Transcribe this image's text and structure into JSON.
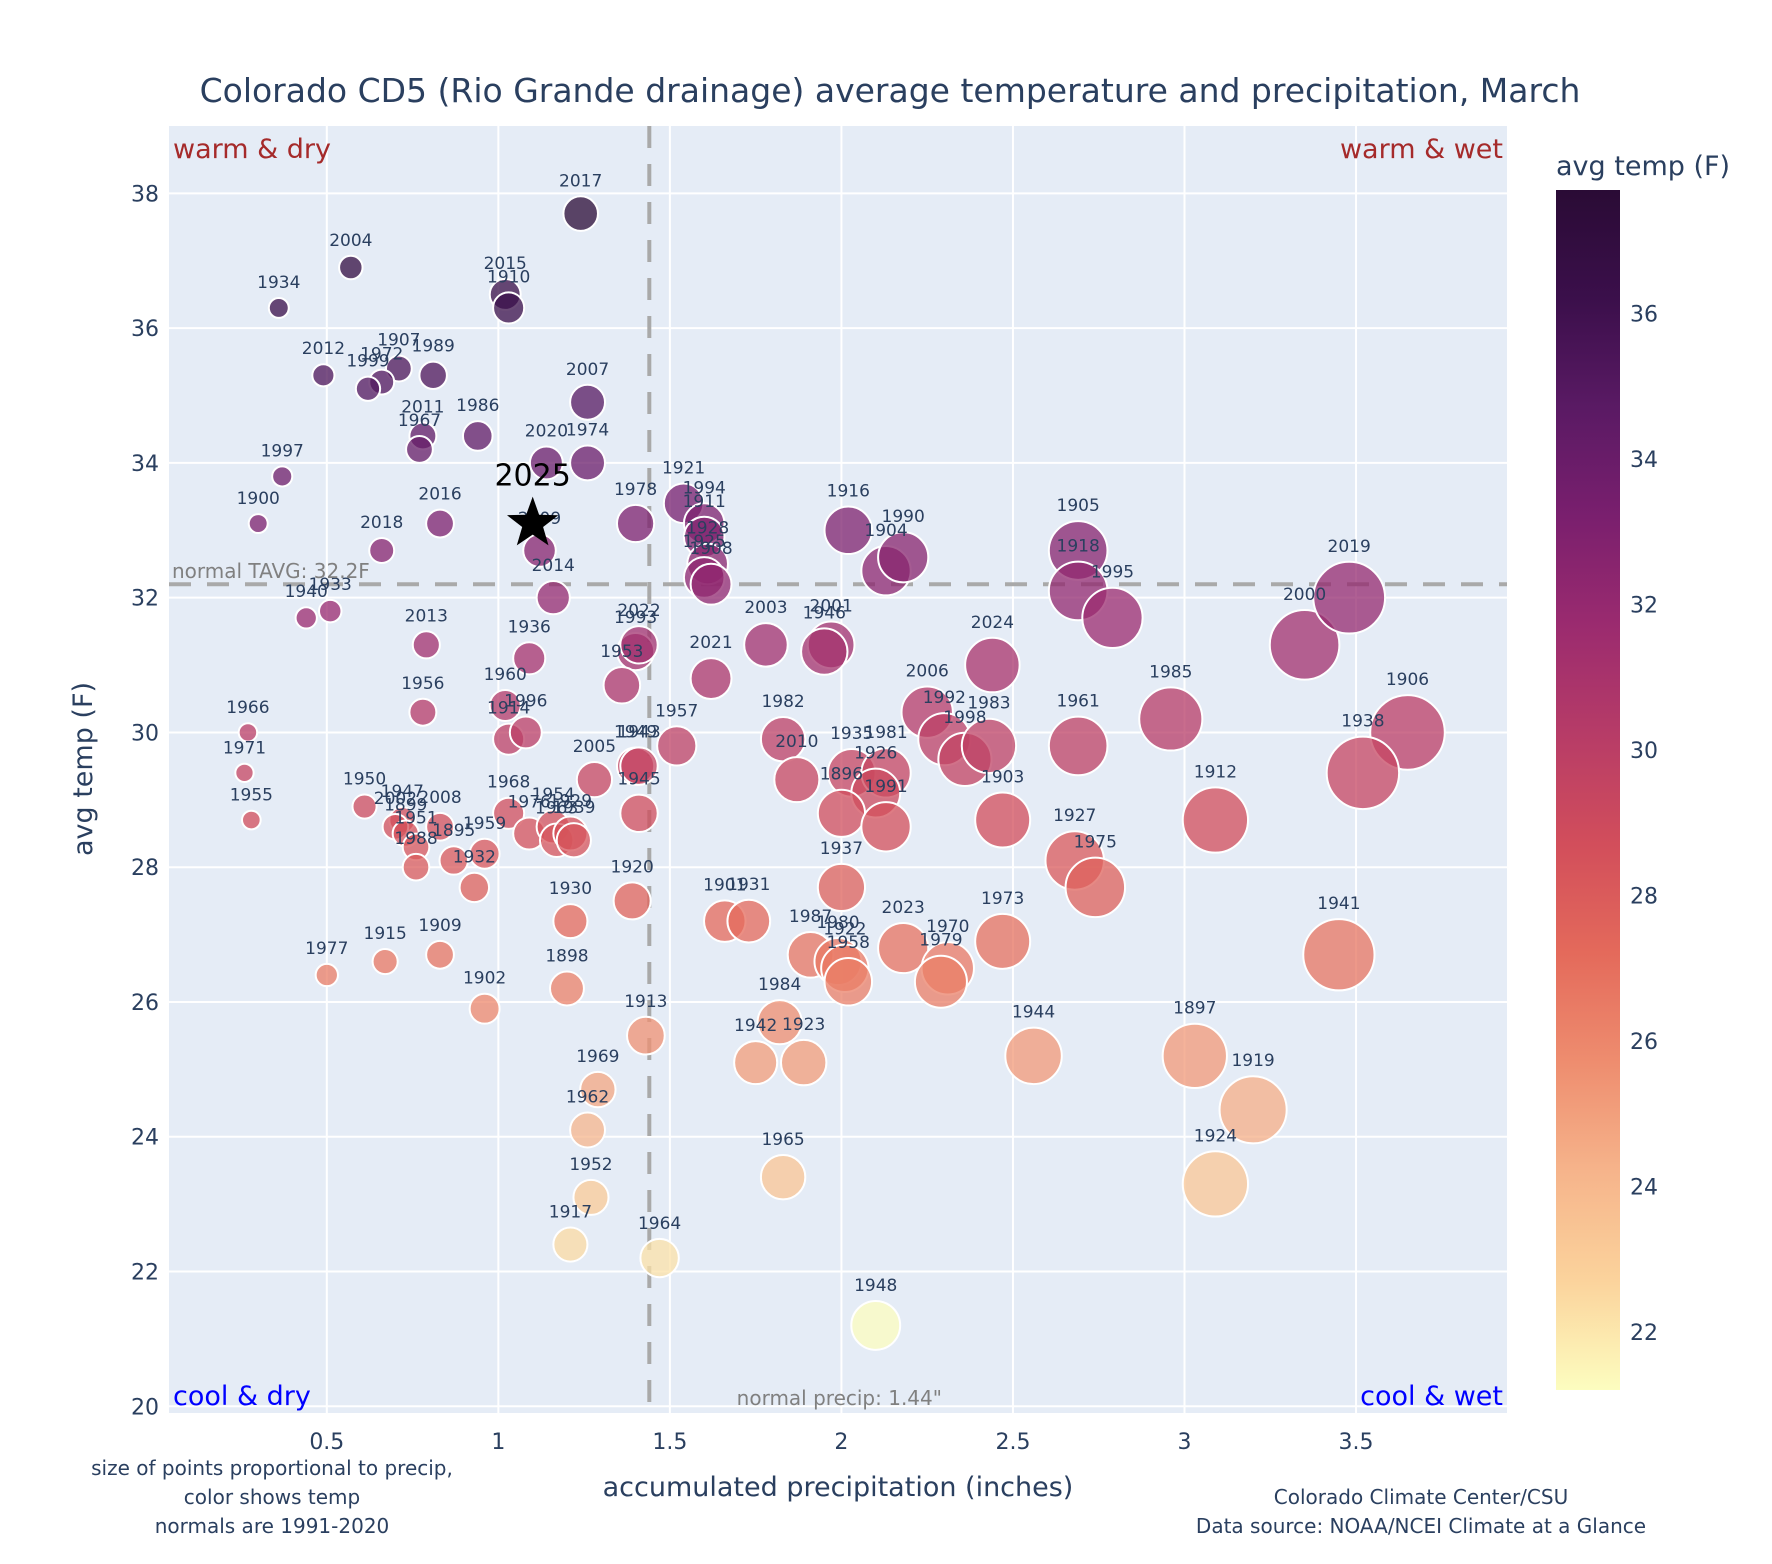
{
  "chart_data": {
    "type": "scatter",
    "title": "Colorado CD5 (Rio Grande drainage) average temperature and precipitation, March",
    "xlabel": "accumulated precipitation (inches)",
    "ylabel": "avg temp (F)",
    "xlim": [
      0.04,
      3.94
    ],
    "ylim": [
      19.9,
      39.0
    ],
    "xticks": [
      0.5,
      1,
      1.5,
      2,
      2.5,
      3,
      3.5
    ],
    "xtick_labels": [
      "0.5",
      "1",
      "1.5",
      "2",
      "2.5",
      "3",
      "3.5"
    ],
    "yticks": [
      20,
      22,
      24,
      26,
      28,
      30,
      32,
      34,
      36,
      38
    ],
    "ytick_labels": [
      "20",
      "22",
      "24",
      "26",
      "28",
      "30",
      "32",
      "34",
      "36",
      "38"
    ],
    "grid": true,
    "colorbar": {
      "title": "avg temp (F)",
      "range": [
        21.2,
        37.7
      ],
      "ticks": [
        22,
        24,
        26,
        28,
        30,
        32,
        34,
        36
      ],
      "tick_labels": [
        "22",
        "24",
        "26",
        "28",
        "30",
        "32",
        "34",
        "36"
      ],
      "colorscale": [
        "#fcfdbf",
        "#fbd39c",
        "#f6b48b",
        "#ee8d6f",
        "#e46a5b",
        "#d24e5b",
        "#b73c67",
        "#9b2b6f",
        "#7a1f6e",
        "#5a1a64",
        "#3b0f4b",
        "#2a0b35"
      ]
    },
    "reference_lines": {
      "normal_temp": 32.2,
      "normal_temp_label": "normal TAVG: 32.2F",
      "normal_precip": 1.44,
      "normal_precip_label": "normal precip: 1.44\""
    },
    "quadrant_labels": {
      "top_left": "warm & dry",
      "top_right": "warm & wet",
      "bottom_left": "cool & dry",
      "bottom_right": "cool & wet"
    },
    "quadrant_colors": {
      "warm": "#a52a2a",
      "cool": "#0000ff"
    },
    "highlight": {
      "year": "2025",
      "precip": 1.1,
      "temp": 33.1,
      "marker": "star"
    },
    "points": [
      {
        "year": "2017",
        "precip": 1.24,
        "temp": 37.7
      },
      {
        "year": "2004",
        "precip": 0.57,
        "temp": 36.9
      },
      {
        "year": "1934",
        "precip": 0.36,
        "temp": 36.3
      },
      {
        "year": "2015",
        "precip": 1.02,
        "temp": 36.5
      },
      {
        "year": "1910",
        "precip": 1.03,
        "temp": 36.3
      },
      {
        "year": "2012",
        "precip": 0.49,
        "temp": 35.3
      },
      {
        "year": "1907",
        "precip": 0.71,
        "temp": 35.4
      },
      {
        "year": "1972",
        "precip": 0.66,
        "temp": 35.2
      },
      {
        "year": "1999",
        "precip": 0.62,
        "temp": 35.1
      },
      {
        "year": "1989",
        "precip": 0.81,
        "temp": 35.3
      },
      {
        "year": "2007",
        "precip": 1.26,
        "temp": 34.9
      },
      {
        "year": "2011",
        "precip": 0.78,
        "temp": 34.4
      },
      {
        "year": "1967",
        "precip": 0.77,
        "temp": 34.2
      },
      {
        "year": "1986",
        "precip": 0.94,
        "temp": 34.4
      },
      {
        "year": "2020",
        "precip": 1.14,
        "temp": 34.0
      },
      {
        "year": "1974",
        "precip": 1.26,
        "temp": 34.0
      },
      {
        "year": "1997",
        "precip": 0.37,
        "temp": 33.8
      },
      {
        "year": "1900",
        "precip": 0.3,
        "temp": 33.1
      },
      {
        "year": "2016",
        "precip": 0.83,
        "temp": 33.1
      },
      {
        "year": "2018",
        "precip": 0.66,
        "temp": 32.7
      },
      {
        "year": "2009",
        "precip": 1.12,
        "temp": 32.7
      },
      {
        "year": "2014",
        "precip": 1.16,
        "temp": 32.0
      },
      {
        "year": "1940",
        "precip": 0.44,
        "temp": 31.7
      },
      {
        "year": "1933",
        "precip": 0.51,
        "temp": 31.8
      },
      {
        "year": "2013",
        "precip": 0.79,
        "temp": 31.3
      },
      {
        "year": "1936",
        "precip": 1.09,
        "temp": 31.1
      },
      {
        "year": "1993",
        "precip": 1.4,
        "temp": 31.2
      },
      {
        "year": "2022",
        "precip": 1.41,
        "temp": 31.3
      },
      {
        "year": "1953",
        "precip": 1.36,
        "temp": 30.7
      },
      {
        "year": "1960",
        "precip": 1.02,
        "temp": 30.4
      },
      {
        "year": "1914",
        "precip": 1.03,
        "temp": 29.9
      },
      {
        "year": "1996",
        "precip": 1.08,
        "temp": 30.0
      },
      {
        "year": "1956",
        "precip": 0.78,
        "temp": 30.3
      },
      {
        "year": "1966",
        "precip": 0.27,
        "temp": 30.0
      },
      {
        "year": "1971",
        "precip": 0.26,
        "temp": 29.4
      },
      {
        "year": "1955",
        "precip": 0.28,
        "temp": 28.7
      },
      {
        "year": "1950",
        "precip": 0.61,
        "temp": 28.9
      },
      {
        "year": "1947",
        "precip": 0.72,
        "temp": 28.7
      },
      {
        "year": "2002",
        "precip": 0.7,
        "temp": 28.6
      },
      {
        "year": "1899",
        "precip": 0.73,
        "temp": 28.5
      },
      {
        "year": "2008",
        "precip": 0.83,
        "temp": 28.6
      },
      {
        "year": "1951",
        "precip": 0.76,
        "temp": 28.3
      },
      {
        "year": "1895",
        "precip": 0.87,
        "temp": 28.1
      },
      {
        "year": "1959",
        "precip": 0.96,
        "temp": 28.2
      },
      {
        "year": "1988",
        "precip": 0.76,
        "temp": 28.0
      },
      {
        "year": "1932",
        "precip": 0.93,
        "temp": 27.7
      },
      {
        "year": "1968",
        "precip": 1.03,
        "temp": 28.8
      },
      {
        "year": "1976",
        "precip": 1.09,
        "temp": 28.5
      },
      {
        "year": "1954",
        "precip": 1.16,
        "temp": 28.6
      },
      {
        "year": "1963",
        "precip": 1.17,
        "temp": 28.4
      },
      {
        "year": "1929",
        "precip": 1.21,
        "temp": 28.5
      },
      {
        "year": "1939",
        "precip": 1.22,
        "temp": 28.4
      },
      {
        "year": "2005",
        "precip": 1.28,
        "temp": 29.3
      },
      {
        "year": "1949",
        "precip": 1.4,
        "temp": 29.5
      },
      {
        "year": "1943",
        "precip": 1.41,
        "temp": 29.5
      },
      {
        "year": "1945",
        "precip": 1.41,
        "temp": 28.8
      },
      {
        "year": "1930",
        "precip": 1.21,
        "temp": 27.2
      },
      {
        "year": "1920",
        "precip": 1.39,
        "temp": 27.5
      },
      {
        "year": "1898",
        "precip": 1.2,
        "temp": 26.2
      },
      {
        "year": "1977",
        "precip": 0.5,
        "temp": 26.4
      },
      {
        "year": "1915",
        "precip": 0.67,
        "temp": 26.6
      },
      {
        "year": "1909",
        "precip": 0.83,
        "temp": 26.7
      },
      {
        "year": "1902",
        "precip": 0.96,
        "temp": 25.9
      },
      {
        "year": "1913",
        "precip": 1.43,
        "temp": 25.5
      },
      {
        "year": "1969",
        "precip": 1.29,
        "temp": 24.7
      },
      {
        "year": "1962",
        "precip": 1.26,
        "temp": 24.1
      },
      {
        "year": "1952",
        "precip": 1.27,
        "temp": 23.1
      },
      {
        "year": "1917",
        "precip": 1.21,
        "temp": 22.4
      },
      {
        "year": "1964",
        "precip": 1.47,
        "temp": 22.2
      },
      {
        "year": "1978",
        "precip": 1.4,
        "temp": 33.1
      },
      {
        "year": "1921",
        "precip": 1.54,
        "temp": 33.4
      },
      {
        "year": "1994",
        "precip": 1.6,
        "temp": 33.1
      },
      {
        "year": "1911",
        "precip": 1.6,
        "temp": 32.9
      },
      {
        "year": "1928",
        "precip": 1.61,
        "temp": 32.5
      },
      {
        "year": "1925",
        "precip": 1.6,
        "temp": 32.3
      },
      {
        "year": "1908",
        "precip": 1.62,
        "temp": 32.2
      },
      {
        "year": "2021",
        "precip": 1.62,
        "temp": 30.8
      },
      {
        "year": "1957",
        "precip": 1.52,
        "temp": 29.8
      },
      {
        "year": "2003",
        "precip": 1.78,
        "temp": 31.3
      },
      {
        "year": "2001",
        "precip": 1.97,
        "temp": 31.3
      },
      {
        "year": "1946",
        "precip": 1.95,
        "temp": 31.2
      },
      {
        "year": "1982",
        "precip": 1.83,
        "temp": 29.9
      },
      {
        "year": "2010",
        "precip": 1.87,
        "temp": 29.3
      },
      {
        "year": "1916",
        "precip": 2.02,
        "temp": 33.0
      },
      {
        "year": "1904",
        "precip": 2.13,
        "temp": 32.4
      },
      {
        "year": "1990",
        "precip": 2.18,
        "temp": 32.6
      },
      {
        "year": "1935",
        "precip": 2.03,
        "temp": 29.4
      },
      {
        "year": "1981",
        "precip": 2.13,
        "temp": 29.4
      },
      {
        "year": "1926",
        "precip": 2.1,
        "temp": 29.1
      },
      {
        "year": "1896",
        "precip": 2.0,
        "temp": 28.8
      },
      {
        "year": "1991",
        "precip": 2.13,
        "temp": 28.6
      },
      {
        "year": "2006",
        "precip": 2.25,
        "temp": 30.3
      },
      {
        "year": "1992",
        "precip": 2.3,
        "temp": 29.9
      },
      {
        "year": "1998",
        "precip": 2.36,
        "temp": 29.6
      },
      {
        "year": "1983",
        "precip": 2.43,
        "temp": 29.8
      },
      {
        "year": "2024",
        "precip": 2.44,
        "temp": 31.0
      },
      {
        "year": "1903",
        "precip": 2.47,
        "temp": 28.7
      },
      {
        "year": "1937",
        "precip": 2.0,
        "temp": 27.7
      },
      {
        "year": "1901",
        "precip": 1.66,
        "temp": 27.2
      },
      {
        "year": "1931",
        "precip": 1.73,
        "temp": 27.2
      },
      {
        "year": "1987",
        "precip": 1.91,
        "temp": 26.7
      },
      {
        "year": "1980",
        "precip": 1.99,
        "temp": 26.6
      },
      {
        "year": "1922",
        "precip": 2.01,
        "temp": 26.5
      },
      {
        "year": "1958",
        "precip": 2.02,
        "temp": 26.3
      },
      {
        "year": "2023",
        "precip": 2.18,
        "temp": 26.8
      },
      {
        "year": "1970",
        "precip": 2.31,
        "temp": 26.5
      },
      {
        "year": "1979",
        "precip": 2.29,
        "temp": 26.3
      },
      {
        "year": "1973",
        "precip": 2.47,
        "temp": 26.9
      },
      {
        "year": "1984",
        "precip": 1.82,
        "temp": 25.7
      },
      {
        "year": "1942",
        "precip": 1.75,
        "temp": 25.1
      },
      {
        "year": "1923",
        "precip": 1.89,
        "temp": 25.1
      },
      {
        "year": "1944",
        "precip": 2.56,
        "temp": 25.2
      },
      {
        "year": "1965",
        "precip": 1.83,
        "temp": 23.4
      },
      {
        "year": "1948",
        "precip": 2.1,
        "temp": 21.2
      },
      {
        "year": "1905",
        "precip": 2.69,
        "temp": 32.7
      },
      {
        "year": "1918",
        "precip": 2.69,
        "temp": 32.1
      },
      {
        "year": "1995",
        "precip": 2.79,
        "temp": 31.7
      },
      {
        "year": "1961",
        "precip": 2.69,
        "temp": 29.8
      },
      {
        "year": "1927",
        "precip": 2.68,
        "temp": 28.1
      },
      {
        "year": "1975",
        "precip": 2.74,
        "temp": 27.7
      },
      {
        "year": "1985",
        "precip": 2.96,
        "temp": 30.2
      },
      {
        "year": "1912",
        "precip": 3.09,
        "temp": 28.7
      },
      {
        "year": "2000",
        "precip": 3.35,
        "temp": 31.3
      },
      {
        "year": "2019",
        "precip": 3.48,
        "temp": 32.0
      },
      {
        "year": "1906",
        "precip": 3.65,
        "temp": 30.0
      },
      {
        "year": "1938",
        "precip": 3.52,
        "temp": 29.4
      },
      {
        "year": "1941",
        "precip": 3.45,
        "temp": 26.7
      },
      {
        "year": "1897",
        "precip": 3.03,
        "temp": 25.2
      },
      {
        "year": "1919",
        "precip": 3.2,
        "temp": 24.4
      },
      {
        "year": "1924",
        "precip": 3.09,
        "temp": 23.3
      }
    ],
    "notes": {
      "left": [
        "size of points proportional to precip,",
        "color shows temp",
        "normals are 1991-2020"
      ],
      "right": [
        "Colorado Climate Center/CSU",
        "Data source: NOAA/NCEI Climate at a Glance"
      ]
    }
  }
}
